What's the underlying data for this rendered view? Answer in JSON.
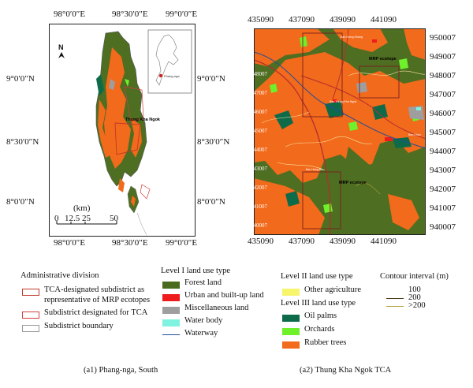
{
  "map_a1": {
    "top_lon": [
      "98°0′0″E",
      "98°30′0″E",
      "99°0′0″E"
    ],
    "bottom_lon": [
      "98°0′0″E",
      "98°30′0″E",
      "99°0′0″E"
    ],
    "left_lat": [
      "9°0′0″N",
      "8°30′0″N",
      "8°0′0″N"
    ],
    "right_lat": [
      "9°0′0″N",
      "8°30′0″N",
      "8°0′0″N"
    ],
    "north": "N",
    "inset_label": "Phang-nga",
    "place_label": "Thung Kha Ngok",
    "scale_unit": "(km)",
    "scale_ticks": [
      "0",
      "12.5",
      "25",
      "50"
    ],
    "caption": "(a1) Phang-nga, South"
  },
  "map_a2": {
    "top_x": [
      "435090",
      "437090",
      "439090",
      "441090"
    ],
    "bottom_x": [
      "435090",
      "437090",
      "439090",
      "441090"
    ],
    "right_y": [
      "950007",
      "949007",
      "948007",
      "947007",
      "946007",
      "945007",
      "944007",
      "943007",
      "942007",
      "941007",
      "940007"
    ],
    "left_y": [
      "948007",
      "947007",
      "946007",
      "945007",
      "944007",
      "943007",
      "942007",
      "941007",
      "940007"
    ],
    "ecotope_upper": "MRP ecotope",
    "ecotope_lower": "MRP ecotope",
    "village_labels": [
      "Ban Klong Khang",
      "Ban Thung Kha Ngok",
      "Ban Khao",
      "Ban Hang Ba"
    ],
    "caption": "(a2) Thung Kha Ngok TCA"
  },
  "legend": {
    "admin_title": "Administrative division",
    "admin_items": [
      {
        "label": "TCA-designated subdistrict as",
        "label2": "representative of MRP ecotopes",
        "color": "#c0392b"
      },
      {
        "label": "Subdistrict designated for TCA",
        "color": "#d04040"
      },
      {
        "label": "Subdistrict boundary",
        "color": "#999999"
      }
    ],
    "level1_title": "Level I land use type",
    "level1_items": [
      {
        "label": "Forest land",
        "color": "#4a6b1e"
      },
      {
        "label": "Urban and built-up land",
        "color": "#ee1c1c"
      },
      {
        "label": "Miscellaneous land",
        "color": "#9e9e9e"
      },
      {
        "label": "Water body",
        "color": "#7ff3e0"
      },
      {
        "label": "Waterway",
        "color": "#1f4e9a"
      }
    ],
    "level2_title": "Level II land use type",
    "level2_items": [
      {
        "label": "Other agriculture",
        "color": "#f7f56b"
      }
    ],
    "level3_title": "Level III land use type",
    "level3_items": [
      {
        "label": "Oil palms",
        "color": "#0e6b4a"
      },
      {
        "label": "Orchards",
        "color": "#6ef02a"
      },
      {
        "label": "Rubber trees",
        "color": "#f26a1b"
      }
    ],
    "contour_title": "Contour interval (m)",
    "contour_items": [
      {
        "label": "100",
        "color": "#555555"
      },
      {
        "label": "200",
        "color": "#4d3c1c"
      },
      {
        "label": ">200",
        "color": "#b7a13a"
      }
    ]
  }
}
